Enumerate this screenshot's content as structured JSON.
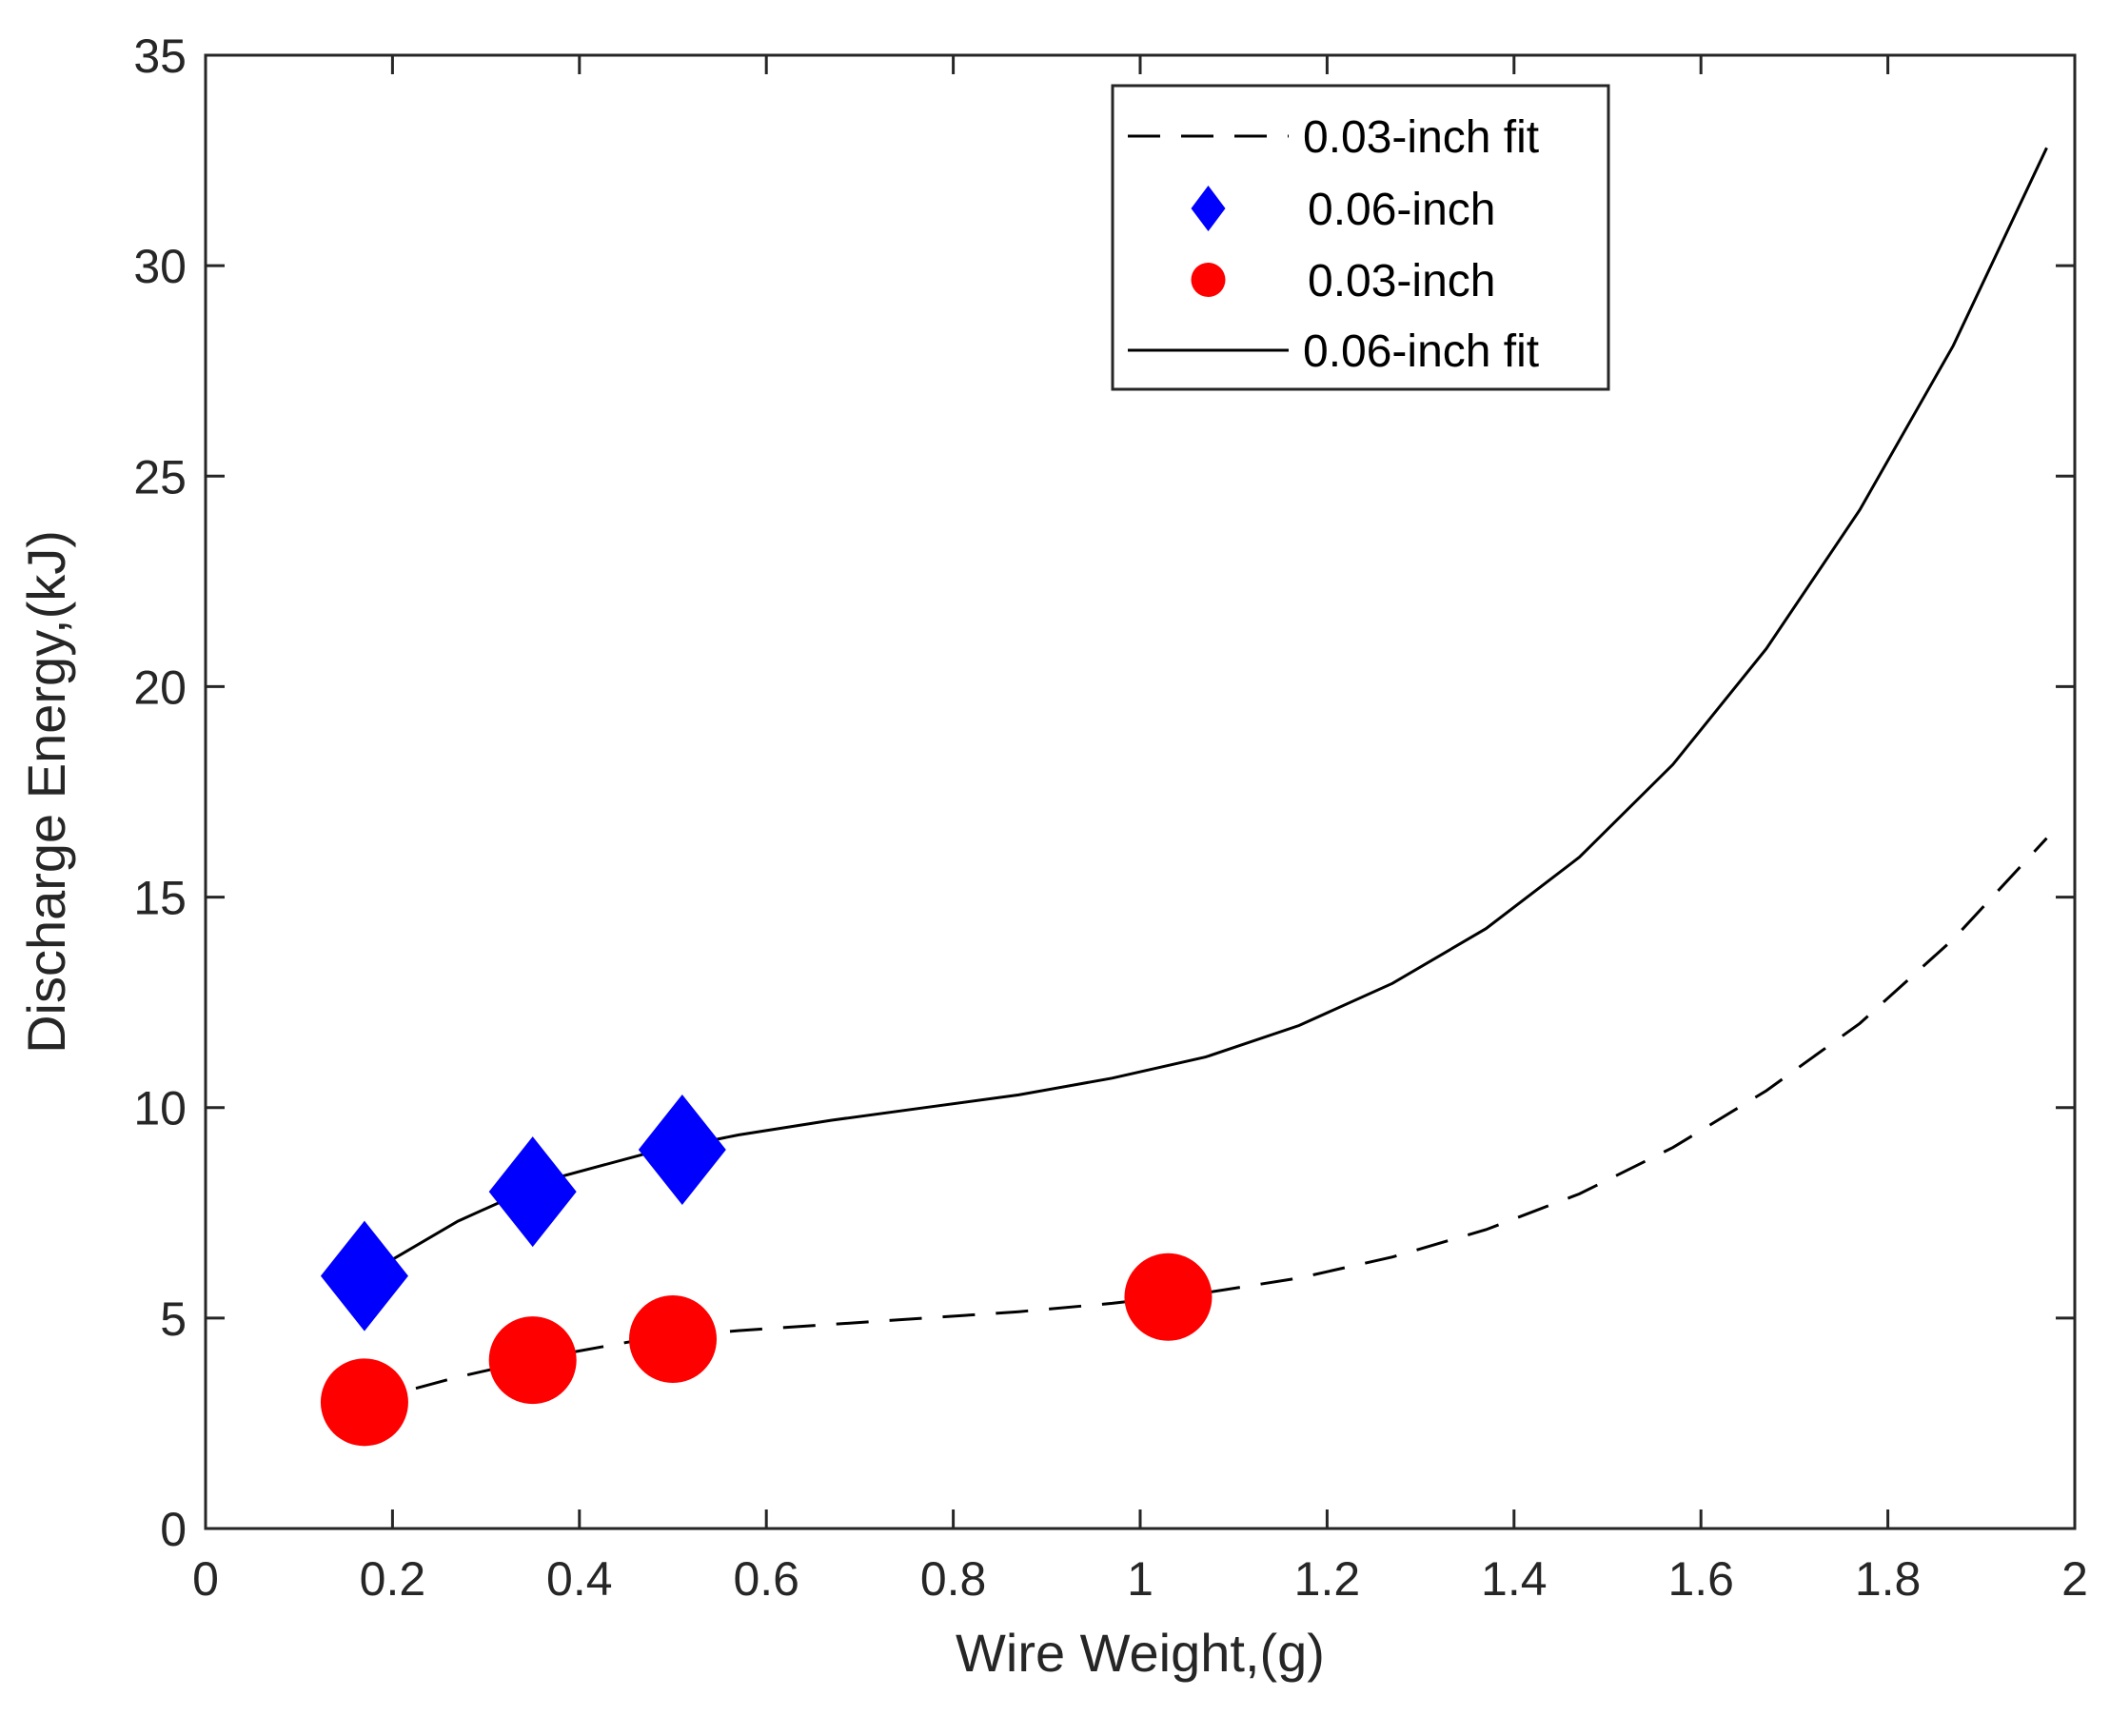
{
  "chart_data": {
    "type": "scatter",
    "title": "",
    "xlabel": "Wire Weight,(g)",
    "ylabel": "Discharge Energy,(kJ)",
    "xlim": [
      0,
      2
    ],
    "ylim": [
      0,
      35
    ],
    "xticks": [
      0,
      0.2,
      0.4,
      0.6,
      0.8,
      1,
      1.2,
      1.4,
      1.6,
      1.8,
      2
    ],
    "xtick_labels": [
      "0",
      "0.2",
      "0.4",
      "0.6",
      "0.8",
      "1",
      "1.2",
      "1.4",
      "1.6",
      "1.8",
      "2"
    ],
    "yticks": [
      0,
      5,
      10,
      15,
      20,
      25,
      30,
      35
    ],
    "ytick_labels": [
      "0",
      "5",
      "10",
      "15",
      "20",
      "25",
      "30",
      "35"
    ],
    "grid": false,
    "legend_position": "top-right",
    "series": [
      {
        "name": "0.03-inch fit",
        "kind": "line",
        "style": "dashed",
        "color": "#000000",
        "x": [
          0.17,
          0.27,
          0.37,
          0.47,
          0.57,
          0.67,
          0.77,
          0.87,
          0.97,
          1.07,
          1.17,
          1.27,
          1.37,
          1.47,
          1.57,
          1.67,
          1.77,
          1.87,
          1.97
        ],
        "y": [
          3.0,
          3.6,
          4.1,
          4.5,
          4.7,
          4.85,
          5.0,
          5.15,
          5.35,
          5.6,
          5.95,
          6.45,
          7.1,
          7.95,
          9.05,
          10.4,
          12.0,
          14.0,
          16.4
        ]
      },
      {
        "name": "0.06-inch",
        "kind": "marker",
        "marker": "diamond",
        "color": "#0000ff",
        "x": [
          0.17,
          0.35,
          0.51
        ],
        "y": [
          6.0,
          8.0,
          9.0
        ]
      },
      {
        "name": "0.03-inch",
        "kind": "marker",
        "marker": "circle",
        "color": "#ff0000",
        "x": [
          0.17,
          0.35,
          0.5,
          1.03
        ],
        "y": [
          3.0,
          4.0,
          4.5,
          5.5
        ]
      },
      {
        "name": "0.06-inch fit",
        "kind": "line",
        "style": "solid",
        "color": "#000000",
        "x": [
          0.17,
          0.27,
          0.37,
          0.47,
          0.57,
          0.67,
          0.77,
          0.87,
          0.97,
          1.07,
          1.17,
          1.27,
          1.37,
          1.47,
          1.57,
          1.67,
          1.77,
          1.87,
          1.97
        ],
        "y": [
          6.0,
          7.3,
          8.3,
          8.9,
          9.35,
          9.7,
          10.0,
          10.3,
          10.7,
          11.2,
          11.95,
          12.95,
          14.25,
          15.95,
          18.15,
          20.9,
          24.2,
          28.1,
          32.8
        ]
      }
    ],
    "legend_order": [
      "0.03-inch fit",
      "0.06-inch",
      "0.03-inch",
      "0.06-inch fit"
    ]
  }
}
